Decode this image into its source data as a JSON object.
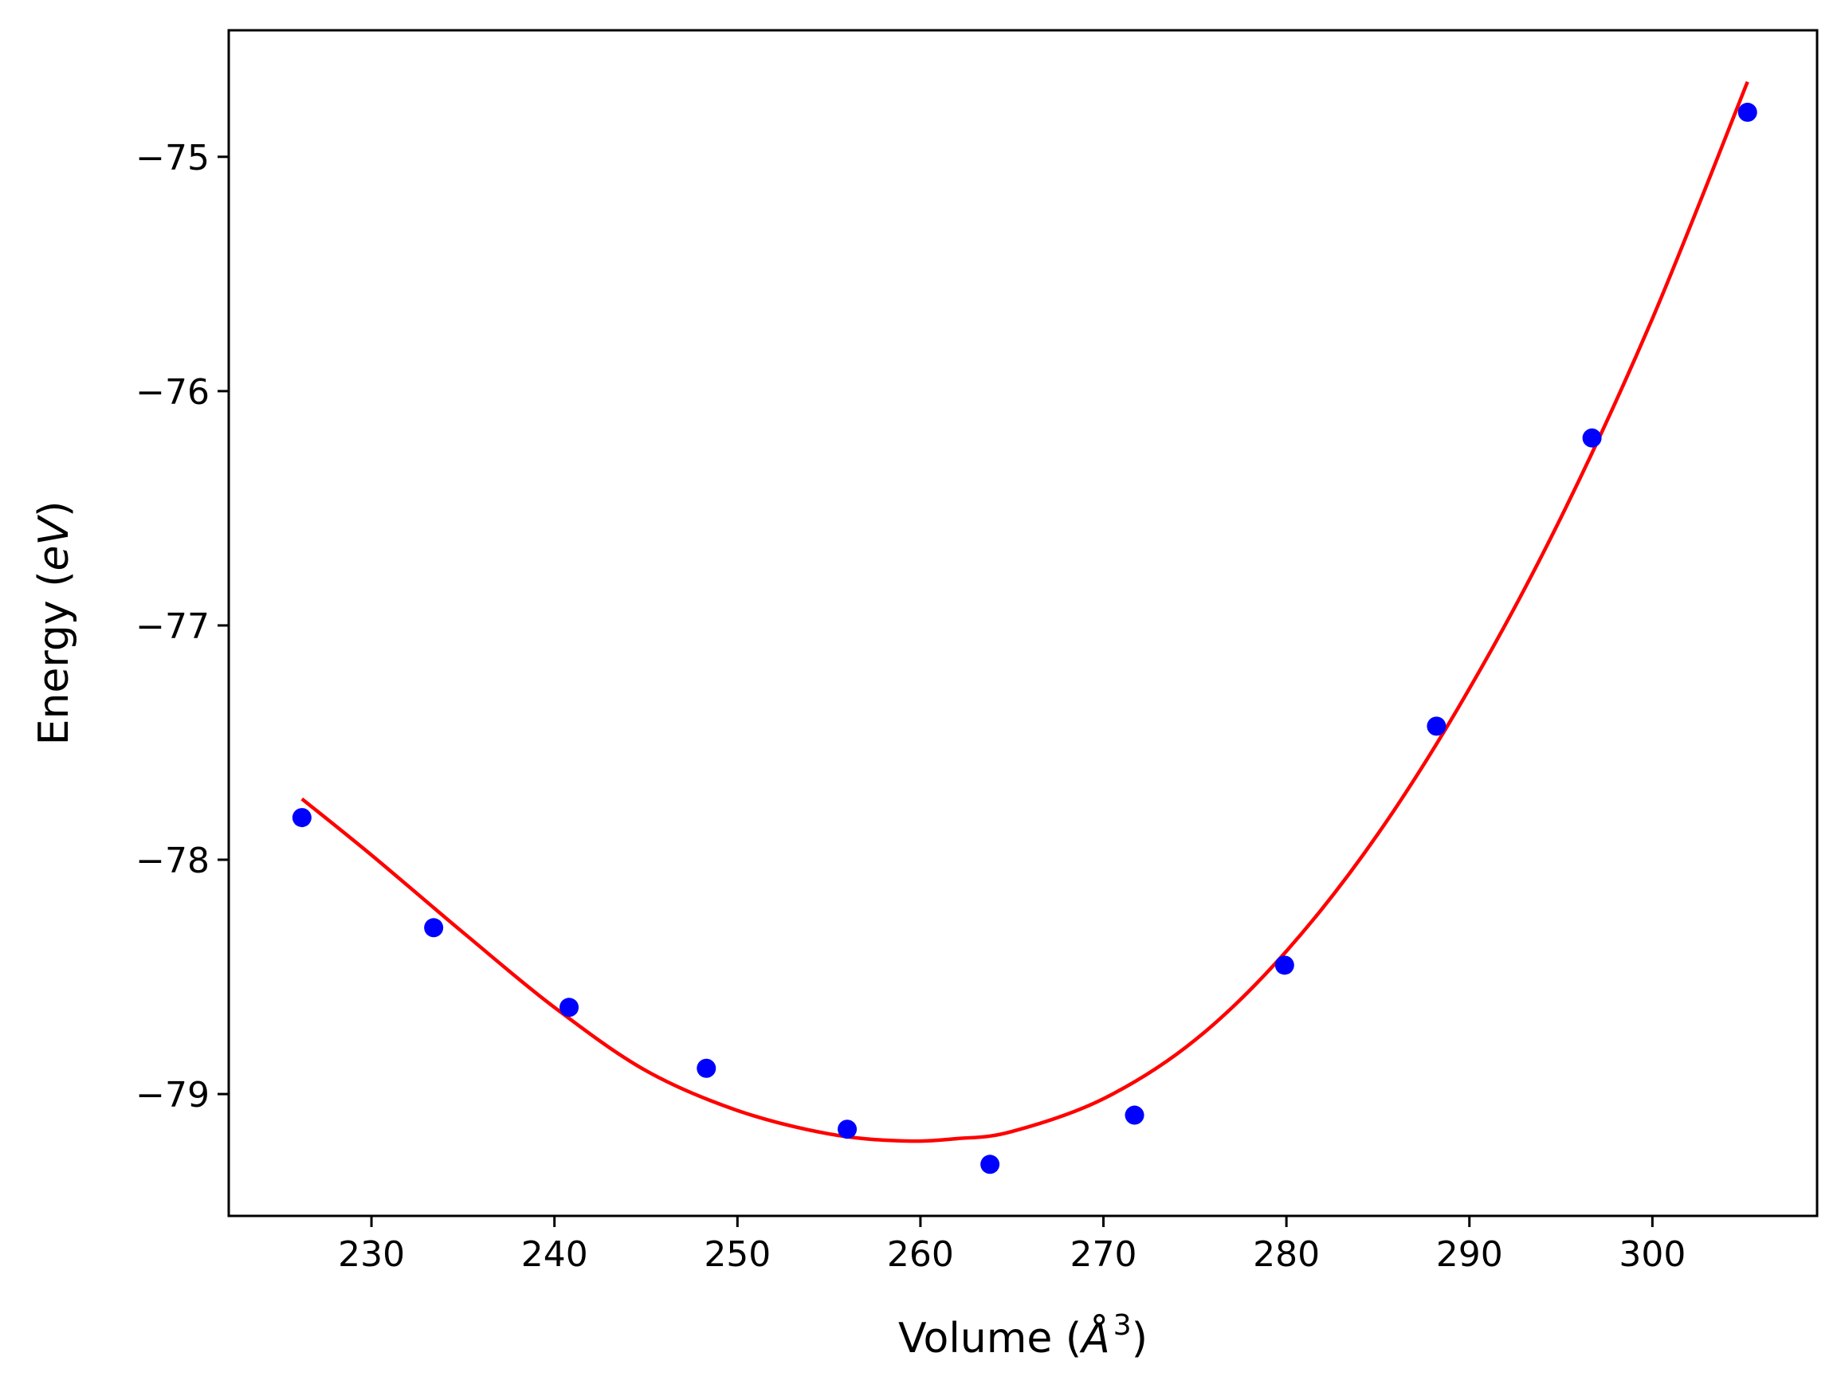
{
  "chart_data": {
    "type": "scatter",
    "xlabel": "Volume (Å³)",
    "xlabel_parts": {
      "before": "Volume (",
      "italic": "Å",
      "sup": "3",
      "after": ")"
    },
    "ylabel": "Energy (eV)",
    "ylabel_parts": {
      "before": "Energy (",
      "italic": "eV",
      "after": ")"
    },
    "xlim": [
      222.2,
      309.0
    ],
    "ylim": [
      -79.52,
      -74.46
    ],
    "x_ticks": [
      230,
      240,
      250,
      260,
      270,
      280,
      290,
      300
    ],
    "y_ticks": [
      -79,
      -78,
      -77,
      -76,
      -75
    ],
    "y_tick_labels": [
      "−79",
      "−78",
      "−77",
      "−76",
      "−75"
    ],
    "grid": false,
    "series": [
      {
        "kind": "points",
        "color": "#0000ff",
        "x": [
          226.2,
          233.4,
          240.8,
          248.3,
          256.0,
          263.8,
          271.7,
          279.9,
          288.2,
          296.7,
          305.2
        ],
        "y": [
          -77.82,
          -78.29,
          -78.63,
          -78.89,
          -79.15,
          -79.3,
          -79.09,
          -78.45,
          -77.43,
          -76.2,
          -74.81
        ]
      },
      {
        "kind": "fit-curve",
        "color": "#ff0000",
        "x": [
          226.2,
          230.0,
          235.0,
          240.0,
          245.0,
          250.0,
          255.0,
          259.0,
          262.0,
          265.0,
          270.0,
          275.0,
          280.0,
          285.0,
          290.0,
          295.0,
          300.0,
          305.2
        ],
        "y": [
          -77.74,
          -77.98,
          -78.31,
          -78.63,
          -78.9,
          -79.07,
          -79.17,
          -79.2,
          -79.19,
          -79.16,
          -79.02,
          -78.77,
          -78.39,
          -77.89,
          -77.27,
          -76.54,
          -75.69,
          -74.68
        ]
      }
    ]
  }
}
